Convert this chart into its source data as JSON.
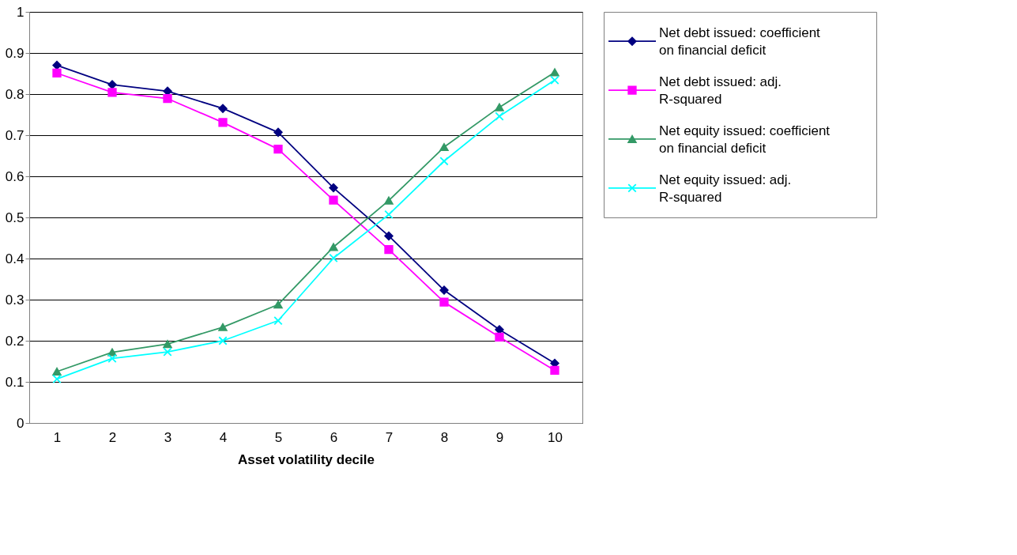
{
  "chart_data": {
    "type": "line",
    "xlabel": "Asset volatility decile",
    "categories": [
      "1",
      "2",
      "3",
      "4",
      "5",
      "6",
      "7",
      "8",
      "9",
      "10"
    ],
    "ylim": [
      0,
      1
    ],
    "yticks": [
      0,
      0.1,
      0.2,
      0.3,
      0.4,
      0.5,
      0.6,
      0.7,
      0.8,
      0.9,
      1
    ],
    "grid": "y",
    "legend": "right",
    "series": [
      {
        "name": "Net debt issued: coefficient on financial deficit",
        "color": "#000080",
        "marker": "diamond",
        "values": [
          0.87,
          0.823,
          0.807,
          0.765,
          0.707,
          0.572,
          0.455,
          0.323,
          0.227,
          0.145
        ]
      },
      {
        "name": "Net debt issued: adj. R-squared",
        "color": "#ff00ff",
        "marker": "square",
        "values": [
          0.851,
          0.804,
          0.789,
          0.731,
          0.666,
          0.542,
          0.422,
          0.294,
          0.209,
          0.128
        ]
      },
      {
        "name": "Net equity issued: coefficient on financial deficit",
        "color": "#339966",
        "marker": "triangle",
        "values": [
          0.125,
          0.172,
          0.192,
          0.233,
          0.288,
          0.428,
          0.541,
          0.671,
          0.768,
          0.853
        ]
      },
      {
        "name": "Net equity issued: adj. R-squared",
        "color": "#00ffff",
        "marker": "cross",
        "values": [
          0.107,
          0.157,
          0.173,
          0.2,
          0.249,
          0.401,
          0.507,
          0.637,
          0.746,
          0.834
        ]
      }
    ]
  }
}
